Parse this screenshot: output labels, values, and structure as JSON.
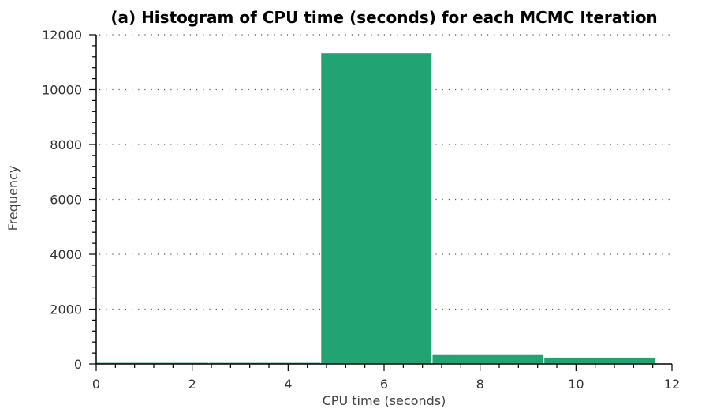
{
  "chart_data": {
    "type": "histogram",
    "title": "(a) Histogram of CPU time (seconds) for each MCMC Iteration",
    "xlabel": "CPU time (seconds)",
    "ylabel": "Frequency",
    "xlim": [
      0,
      12
    ],
    "ylim": [
      0,
      12000
    ],
    "xticks": [
      0,
      2,
      4,
      6,
      8,
      10,
      12
    ],
    "yticks": [
      0,
      2000,
      4000,
      6000,
      8000,
      10000,
      12000
    ],
    "grid": true,
    "bar_color": "#22a373",
    "bins": [
      {
        "x0": 0.0,
        "x1": 2.35,
        "count": 0
      },
      {
        "x0": 2.35,
        "x1": 4.68,
        "count": 0
      },
      {
        "x0": 4.68,
        "x1": 7.0,
        "count": 11350
      },
      {
        "x0": 7.0,
        "x1": 9.33,
        "count": 370
      },
      {
        "x0": 9.33,
        "x1": 11.66,
        "count": 250
      }
    ]
  }
}
